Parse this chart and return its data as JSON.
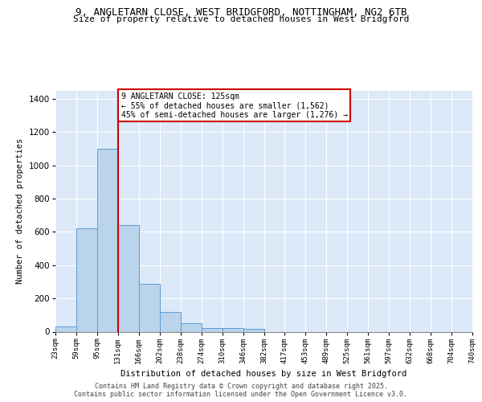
{
  "title1": "9, ANGLETARN CLOSE, WEST BRIDGFORD, NOTTINGHAM, NG2 6TB",
  "title2": "Size of property relative to detached houses in West Bridgford",
  "xlabel": "Distribution of detached houses by size in West Bridgford",
  "ylabel": "Number of detached properties",
  "bar_heights": [
    30,
    620,
    1100,
    640,
    290,
    120,
    50,
    20,
    20,
    15,
    0,
    0,
    0,
    0,
    0,
    0,
    0,
    0,
    0,
    0
  ],
  "tick_labels": [
    "23sqm",
    "59sqm",
    "95sqm",
    "131sqm",
    "166sqm",
    "202sqm",
    "238sqm",
    "274sqm",
    "310sqm",
    "346sqm",
    "382sqm",
    "417sqm",
    "453sqm",
    "489sqm",
    "525sqm",
    "561sqm",
    "597sqm",
    "632sqm",
    "668sqm",
    "704sqm",
    "740sqm"
  ],
  "bar_color": "#bad4ec",
  "bar_edge_color": "#5b9bd5",
  "vline_color": "#cc0000",
  "annotation_title": "9 ANGLETARN CLOSE: 125sqm",
  "annotation_line1": "← 55% of detached houses are smaller (1,562)",
  "annotation_line2": "45% of semi-detached houses are larger (1,276) →",
  "annotation_box_facecolor": "#ffffff",
  "annotation_box_edgecolor": "#cc0000",
  "ylim": [
    0,
    1450
  ],
  "yticks": [
    0,
    200,
    400,
    600,
    800,
    1000,
    1200,
    1400
  ],
  "plot_bg_color": "#dce9f8",
  "grid_color": "#ffffff",
  "footer1": "Contains HM Land Registry data © Crown copyright and database right 2025.",
  "footer2": "Contains public sector information licensed under the Open Government Licence v3.0."
}
